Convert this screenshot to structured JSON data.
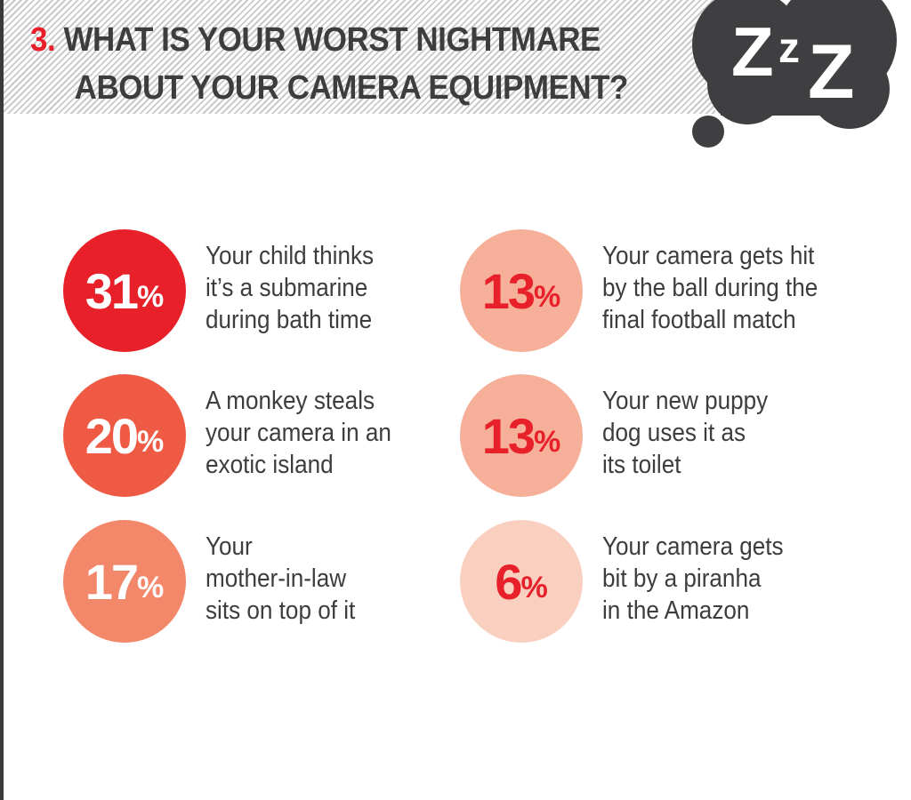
{
  "header": {
    "number": "3.",
    "title_line1": "WHAT IS YOUR WORST NIGHTMARE",
    "title_line2": "ABOUT YOUR CAMERA EQUIPMENT?",
    "cloud_text": [
      "Z",
      "z",
      "Z"
    ]
  },
  "colors": {
    "accent": "#e8202a",
    "text": "#3d3d3f",
    "cloud": "#3f3f41"
  },
  "chart_data": {
    "type": "table",
    "title": "WHAT IS YOUR WORST NIGHTMARE ABOUT YOUR CAMERA EQUIPMENT?",
    "items": [
      {
        "value": 31,
        "value_label": "31",
        "unit": "%",
        "label": "Your child thinks\nit’s a submarine\nduring bath time",
        "color": "#e8202a",
        "text_color": "#ffffff"
      },
      {
        "value": 20,
        "value_label": "20",
        "unit": "%",
        "label": "A monkey steals\nyour camera in an\nexotic island",
        "color": "#ee5a44",
        "text_color": "#ffffff"
      },
      {
        "value": 17,
        "value_label": "17",
        "unit": "%",
        "label": "Your\nmother-in-law\nsits on top of it",
        "color": "#f2876a",
        "text_color": "#ffffff"
      },
      {
        "value": 13,
        "value_label": "13",
        "unit": "%",
        "label": "Your camera gets hit\nby the ball during the\nfinal football match",
        "color": "#f6b09a",
        "text_color": "#e8202a"
      },
      {
        "value": 13,
        "value_label": "13",
        "unit": "%",
        "label": "Your new puppy\ndog uses it as\nits toilet",
        "color": "#f6b09a",
        "text_color": "#e8202a"
      },
      {
        "value": 6,
        "value_label": "6",
        "unit": "%",
        "label": "Your camera gets\nbit by a piranha\nin the Amazon",
        "color": "#f9d0c0",
        "text_color": "#e8202a"
      }
    ]
  }
}
